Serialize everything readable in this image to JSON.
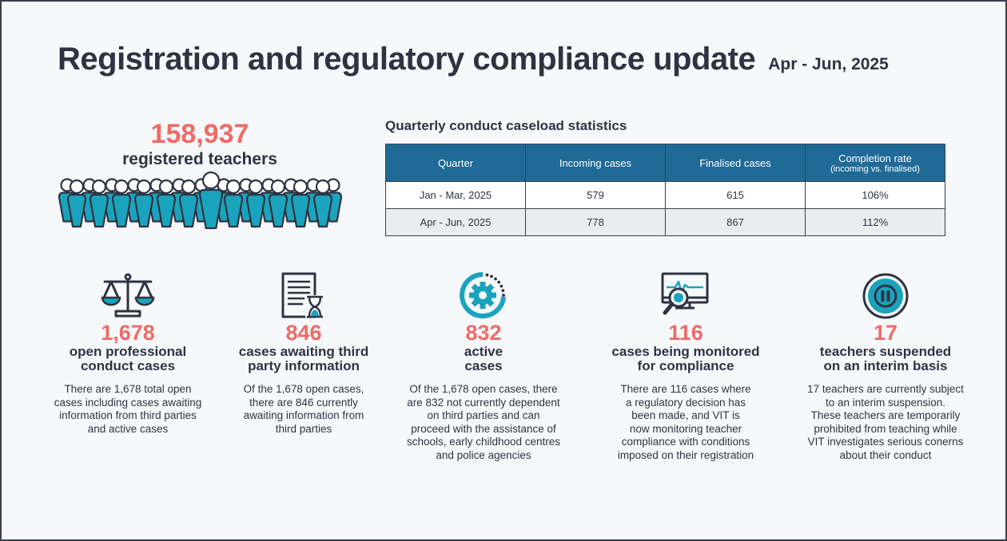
{
  "header": {
    "title": "Registration and regulatory compliance update",
    "period": "Apr - Jun, 2025"
  },
  "registered": {
    "value": "158,937",
    "label": "registered teachers"
  },
  "table": {
    "title": "Quarterly conduct caseload statistics",
    "columns": [
      "Quarter",
      "Incoming cases",
      "Finalised cases",
      "Completion rate"
    ],
    "column_sub": "(incoming vs. finalised)",
    "rows": [
      [
        "Jan - Mar, 2025",
        "579",
        "615",
        "106%"
      ],
      [
        "Apr - Jun, 2025",
        "778",
        "867",
        "112%"
      ]
    ]
  },
  "stats": [
    {
      "icon": "scales-icon",
      "value": "1,678",
      "label": "open professional\nconduct cases",
      "desc": "There are 1,678 total open\ncases including cases awaiting\ninformation from third parties\nand active cases"
    },
    {
      "icon": "document-hourglass-icon",
      "value": "846",
      "label": "cases awaiting third\nparty information",
      "desc": "Of the 1,678 open cases,\nthere are 846 currently\nawaiting information from\nthird parties"
    },
    {
      "icon": "gear-cycle-icon",
      "value": "832",
      "label": "active\ncases",
      "desc": "Of the 1,678 open cases, there\nare 832 not currently dependent\non third parties and can\nproceed with the assistance of\nschools, early childhood centres\nand police agencies"
    },
    {
      "icon": "monitor-magnifier-icon",
      "value": "116",
      "label": "cases being monitored\nfor compliance",
      "desc": "There are 116 cases where\na regulatory decision has\nbeen made, and VIT is\nnow monitoring teacher\ncompliance with conditions\nimposed on their registration"
    },
    {
      "icon": "pause-icon",
      "value": "17",
      "label": "teachers suspended\non an interim basis",
      "desc": "17 teachers are currently subject\nto an interim suspension.\nThese teachers are temporarily\nprohibited from teaching while\nVIT investigates serious conerns\nabout their conduct"
    }
  ],
  "colors": {
    "accent_red": "#ef6b66",
    "teal": "#1aa3bd",
    "header_blue": "#1f6a97",
    "dark": "#2f3341"
  }
}
